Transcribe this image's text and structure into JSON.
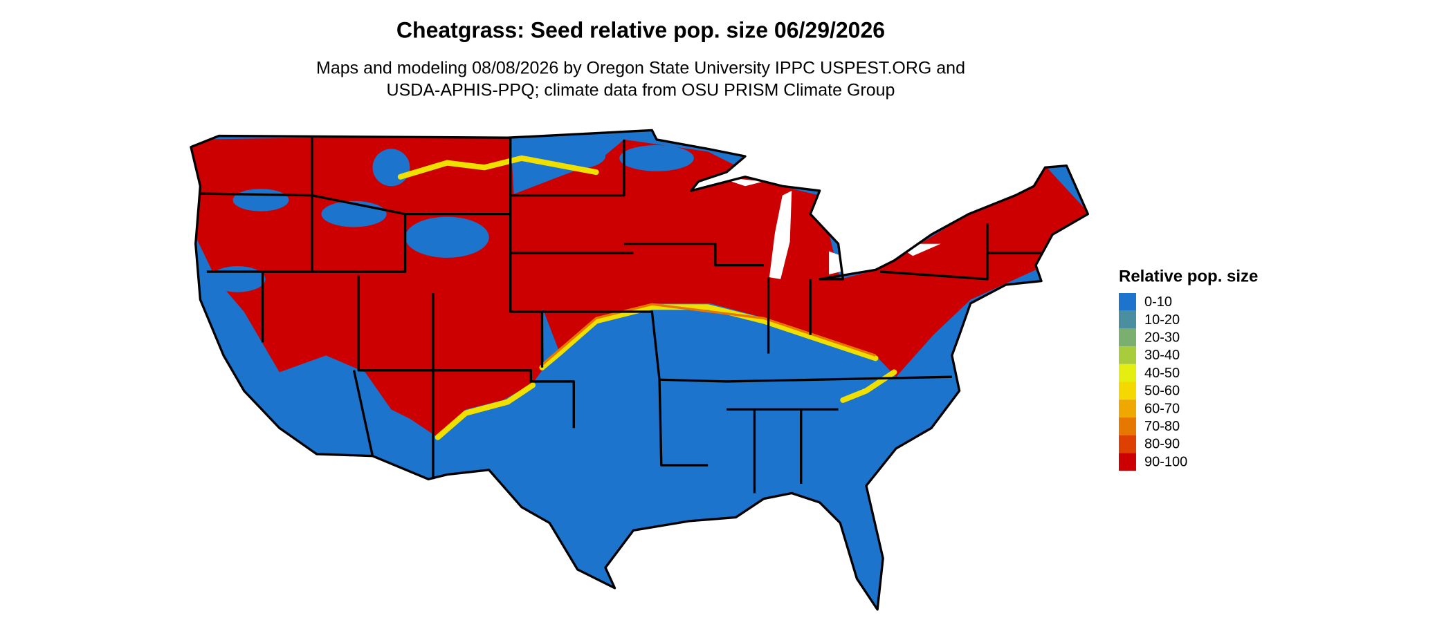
{
  "header": {
    "title": "Cheatgrass: Seed relative pop. size 06/29/2026",
    "subtitle_lines": [
      "Maps and modeling 08/08/2026 by Oregon State University IPPC USPEST.ORG and",
      "USDA-APHIS-PPQ; climate data from OSU PRISM Climate Group"
    ]
  },
  "legend": {
    "title": "Relative pop. size",
    "items": [
      {
        "label": "0-10",
        "color": "#1c74cc"
      },
      {
        "label": "10-20",
        "color": "#4a8fa0"
      },
      {
        "label": "20-30",
        "color": "#7aaf70"
      },
      {
        "label": "30-40",
        "color": "#a8cc3c"
      },
      {
        "label": "40-50",
        "color": "#e4ee10"
      },
      {
        "label": "50-60",
        "color": "#f5d800"
      },
      {
        "label": "60-70",
        "color": "#eea800"
      },
      {
        "label": "70-80",
        "color": "#e67800"
      },
      {
        "label": "80-90",
        "color": "#dd4000"
      },
      {
        "label": "90-100",
        "color": "#cc0000"
      }
    ]
  }
}
